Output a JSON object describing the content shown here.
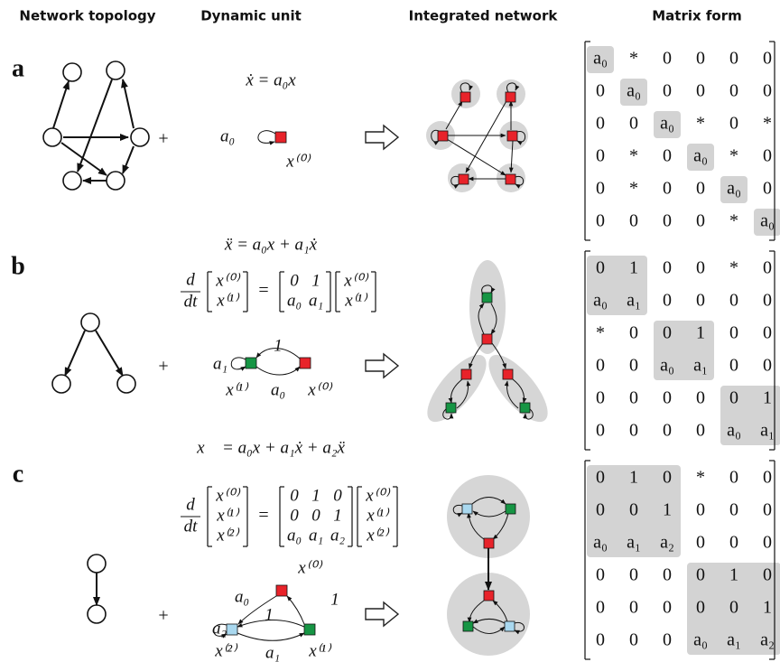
{
  "headers": [
    "Network topology",
    "Dynamic unit",
    "Integrated network",
    "Matrix form"
  ],
  "panels": [
    {
      "label": "a",
      "equation": "ẋ = a₀x",
      "plus": "+",
      "unit_labels": [
        "a₀",
        "x⁽⁰⁾"
      ],
      "matrix": [
        [
          "a₀",
          "*",
          "0",
          "0",
          "0",
          "0"
        ],
        [
          "0",
          "a₀",
          "0",
          "0",
          "0",
          "0"
        ],
        [
          "0",
          "0",
          "a₀",
          "*",
          "0",
          "*"
        ],
        [
          "0",
          "*",
          "0",
          "a₀",
          "*",
          "0"
        ],
        [
          "0",
          "*",
          "0",
          "0",
          "a₀",
          "0"
        ],
        [
          "0",
          "0",
          "0",
          "0",
          "*",
          "a₀"
        ]
      ]
    },
    {
      "label": "b",
      "equation": "ẍ = a₀x  + a₁ẋ",
      "derivative": [
        "d",
        "dt"
      ],
      "equals": "=",
      "state": [
        "x⁽⁰⁾",
        "x⁽¹⁾"
      ],
      "system": [
        [
          "0",
          "1"
        ],
        [
          "a₀",
          "a₁"
        ]
      ],
      "plus": "+",
      "unit_labels": [
        "a₁",
        "1",
        "x⁽¹⁾",
        "a₀",
        "x⁽⁰⁾"
      ],
      "matrix": [
        [
          "0",
          "1",
          "0",
          "0",
          "*",
          "0"
        ],
        [
          "a₀",
          "a₁",
          "0",
          "0",
          "0",
          "0"
        ],
        [
          "*",
          "0",
          "0",
          "1",
          "0",
          "0"
        ],
        [
          "0",
          "0",
          "a₀",
          "a₁",
          "0",
          "0"
        ],
        [
          "0",
          "0",
          "0",
          "0",
          "0",
          "1"
        ],
        [
          "0",
          "0",
          "0",
          "0",
          "a₀",
          "a₁"
        ]
      ]
    },
    {
      "label": "c",
      "equation": "x⃛ = a₀x  + a₁ẋ + a₂ẍ",
      "derivative": [
        "d",
        "dt"
      ],
      "equals": "=",
      "state": [
        "x⁽⁰⁾",
        "x⁽¹⁾",
        "x⁽²⁾"
      ],
      "system": [
        [
          "0",
          "1",
          "0"
        ],
        [
          "0",
          "0",
          "1"
        ],
        [
          "a₀",
          "a₁",
          "a₂"
        ]
      ],
      "plus": "+",
      "unit_labels": [
        "x⁽⁰⁾",
        "a₀",
        "1",
        "a₂",
        "1",
        "x⁽²⁾",
        "a₁",
        "x⁽¹⁾"
      ],
      "matrix": [
        [
          "0",
          "1",
          "0",
          "*",
          "0",
          "0"
        ],
        [
          "0",
          "0",
          "1",
          "0",
          "0",
          "0"
        ],
        [
          "a₀",
          "a₁",
          "a₂",
          "0",
          "0",
          "0"
        ],
        [
          "0",
          "0",
          "0",
          "0",
          "1",
          "0"
        ],
        [
          "0",
          "0",
          "0",
          "0",
          "0",
          "1"
        ],
        [
          "0",
          "0",
          "0",
          "a₀",
          "a₁",
          "a₂"
        ]
      ]
    }
  ]
}
